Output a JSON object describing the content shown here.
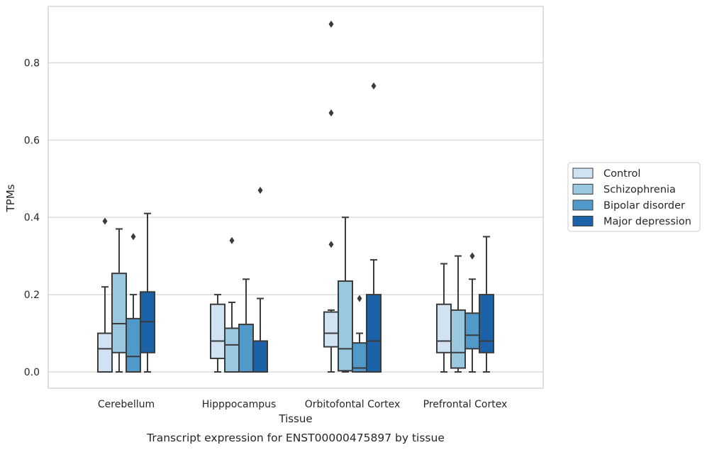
{
  "chart_data": {
    "type": "box",
    "xlabel": "Tissue",
    "ylabel": "TPMs",
    "caption": "Transcript expression for ENST00000475897 by tissue",
    "ylim": [
      -0.045,
      0.95
    ],
    "yticks": [
      0.0,
      0.2,
      0.4,
      0.6,
      0.8
    ],
    "ytick_labels": [
      "0.0",
      "0.2",
      "0.4",
      "0.6",
      "0.8"
    ],
    "grid": "horizontal",
    "legend_position": "right",
    "categories": [
      "Cerebellum",
      "Hipppocampus",
      "Orbitofontal Cortex",
      "Prefrontal Cortex"
    ],
    "series": [
      {
        "name": "Control",
        "color": "#d1e2f2",
        "boxes": [
          {
            "whislo": 0.0,
            "q1": 0.0,
            "med": 0.06,
            "q3": 0.1,
            "whishi": 0.22,
            "fliers": [
              0.39
            ]
          },
          {
            "whislo": 0.0,
            "q1": 0.035,
            "med": 0.08,
            "q3": 0.175,
            "whishi": 0.2,
            "fliers": []
          },
          {
            "whislo": 0.0,
            "q1": 0.065,
            "med": 0.1,
            "q3": 0.155,
            "whishi": 0.16,
            "fliers": [
              0.33,
              0.67,
              0.9
            ]
          },
          {
            "whislo": 0.0,
            "q1": 0.05,
            "med": 0.08,
            "q3": 0.175,
            "whishi": 0.28,
            "fliers": []
          }
        ]
      },
      {
        "name": "Schizophrenia",
        "color": "#9ac8e0",
        "boxes": [
          {
            "whislo": 0.0,
            "q1": 0.05,
            "med": 0.125,
            "q3": 0.255,
            "whishi": 0.37,
            "fliers": []
          },
          {
            "whislo": 0.0,
            "q1": 0.0,
            "med": 0.07,
            "q3": 0.113,
            "whishi": 0.18,
            "fliers": [
              0.34
            ]
          },
          {
            "whislo": 0.0,
            "q1": 0.003,
            "med": 0.06,
            "q3": 0.235,
            "whishi": 0.4,
            "fliers": []
          },
          {
            "whislo": 0.0,
            "q1": 0.01,
            "med": 0.05,
            "q3": 0.16,
            "whishi": 0.3,
            "fliers": []
          }
        ]
      },
      {
        "name": "Bipolar disorder",
        "color": "#5099c8",
        "boxes": [
          {
            "whislo": 0.0,
            "q1": 0.0,
            "med": 0.04,
            "q3": 0.138,
            "whishi": 0.2,
            "fliers": [
              0.35
            ]
          },
          {
            "whislo": 0.0,
            "q1": 0.0,
            "med": 0.0,
            "q3": 0.123,
            "whishi": 0.24,
            "fliers": []
          },
          {
            "whislo": 0.0,
            "q1": 0.0,
            "med": 0.01,
            "q3": 0.075,
            "whishi": 0.1,
            "fliers": [
              0.19
            ]
          },
          {
            "whislo": 0.0,
            "q1": 0.06,
            "med": 0.095,
            "q3": 0.152,
            "whishi": 0.24,
            "fliers": [
              0.3
            ]
          }
        ]
      },
      {
        "name": "Major depression",
        "color": "#1c62a8",
        "boxes": [
          {
            "whislo": 0.0,
            "q1": 0.05,
            "med": 0.13,
            "q3": 0.207,
            "whishi": 0.41,
            "fliers": []
          },
          {
            "whislo": 0.0,
            "q1": 0.0,
            "med": 0.08,
            "q3": 0.08,
            "whishi": 0.19,
            "fliers": [
              0.47
            ]
          },
          {
            "whislo": 0.0,
            "q1": 0.0,
            "med": 0.08,
            "q3": 0.2,
            "whishi": 0.29,
            "fliers": [
              0.74
            ]
          },
          {
            "whislo": 0.0,
            "q1": 0.05,
            "med": 0.08,
            "q3": 0.2,
            "whishi": 0.35,
            "fliers": []
          }
        ]
      }
    ]
  }
}
